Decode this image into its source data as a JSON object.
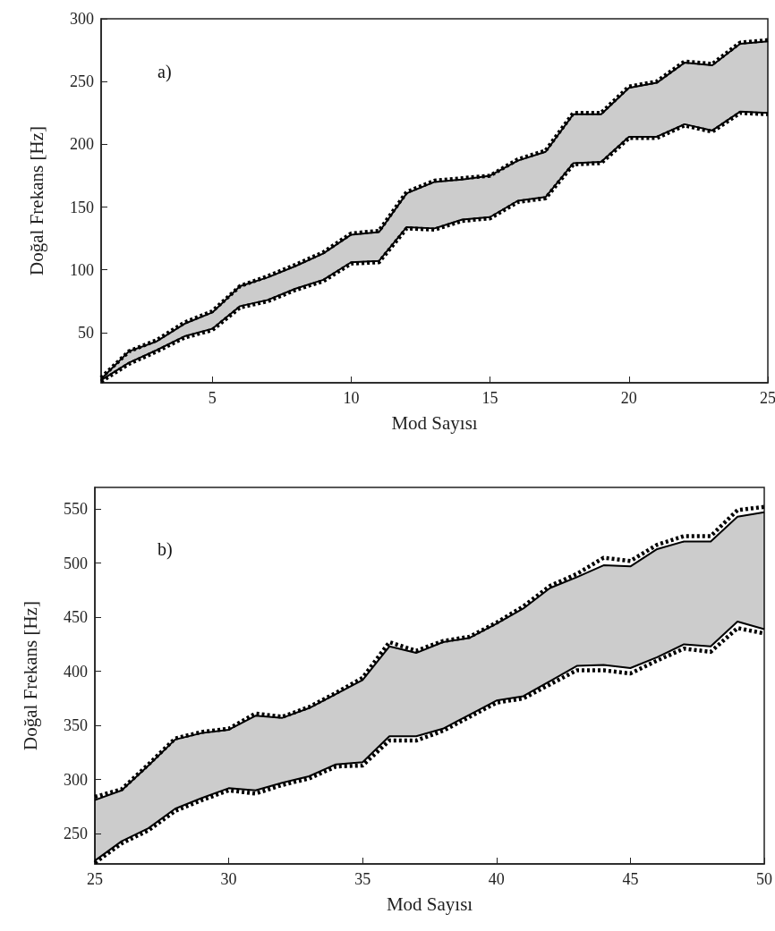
{
  "chart_data": [
    {
      "type": "line",
      "xlabel": "Mod Sayısı",
      "ylabel": "Doğal Frekans [Hz]",
      "annotations": [
        "a)"
      ],
      "x": [
        1,
        2,
        3,
        4,
        5,
        6,
        7,
        8,
        9,
        10,
        11,
        12,
        13,
        14,
        15,
        16,
        17,
        18,
        19,
        20,
        21,
        22,
        23,
        24,
        25
      ],
      "xlim": [
        1,
        25
      ],
      "xticks": [
        5,
        10,
        15,
        20,
        25
      ],
      "ylim": [
        10,
        300
      ],
      "yticks": [
        50,
        100,
        150,
        200,
        250,
        300
      ],
      "grid": false,
      "marker": "none",
      "series": [
        {
          "color": "#000000",
          "line_style": "solid",
          "values": [
            13,
            35,
            43,
            57,
            66,
            87,
            94,
            103,
            113,
            128,
            130,
            161,
            170,
            172,
            175,
            187,
            194,
            224,
            224,
            245,
            249,
            265,
            263,
            280,
            282
          ],
          "lower": [
            12,
            26,
            36,
            47,
            53,
            71,
            76,
            85,
            92,
            106,
            107,
            134,
            133,
            140,
            142,
            155,
            158,
            185,
            186,
            206,
            206,
            216,
            211,
            226,
            225
          ],
          "upper": [
            13,
            35,
            43,
            57,
            66,
            87,
            94,
            103,
            113,
            128,
            130,
            161,
            170,
            172,
            175,
            187,
            194,
            224,
            224,
            245,
            249,
            265,
            263,
            280,
            282
          ]
        },
        {
          "color": "#000000",
          "line_style": "solid",
          "values": [
            12,
            26,
            36,
            47,
            53,
            71,
            76,
            85,
            92,
            106,
            107,
            134,
            133,
            140,
            142,
            155,
            158,
            185,
            186,
            206,
            206,
            216,
            211,
            226,
            225
          ]
        },
        {
          "color": "#000000",
          "line_style": "dotted",
          "values": [
            14,
            35,
            44,
            58,
            67,
            87,
            95,
            104,
            114,
            129,
            131,
            162,
            171,
            173,
            175,
            188,
            195,
            225,
            225,
            246,
            250,
            266,
            264,
            281,
            283
          ]
        },
        {
          "color": "#000000",
          "line_style": "dotted",
          "values": [
            11,
            25,
            35,
            46,
            52,
            70,
            75,
            84,
            91,
            105,
            106,
            133,
            132,
            139,
            141,
            154,
            157,
            184,
            185,
            205,
            205,
            215,
            210,
            225,
            224
          ]
        }
      ]
    },
    {
      "type": "line",
      "xlabel": "Mod Sayısı",
      "ylabel": "Doğal Frekans [Hz]",
      "annotations": [
        "b)"
      ],
      "x": [
        25,
        26,
        27,
        28,
        29,
        30,
        31,
        32,
        33,
        34,
        35,
        36,
        37,
        38,
        39,
        40,
        41,
        42,
        43,
        44,
        45,
        46,
        47,
        48,
        49,
        50
      ],
      "xlim": [
        25,
        50
      ],
      "xticks": [
        25,
        30,
        35,
        40,
        45,
        50
      ],
      "ylim": [
        222,
        570
      ],
      "yticks": [
        250,
        300,
        350,
        400,
        450,
        500,
        550
      ],
      "grid": false,
      "marker": "none",
      "series": [
        {
          "color": "#000000",
          "line_style": "solid",
          "values": [
            281,
            290,
            313,
            337,
            343,
            346,
            359,
            357,
            366,
            379,
            392,
            423,
            417,
            427,
            431,
            444,
            458,
            477,
            487,
            498,
            497,
            513,
            520,
            520,
            543,
            547
          ],
          "lower": [
            225,
            243,
            255,
            273,
            283,
            292,
            290,
            297,
            303,
            314,
            316,
            340,
            340,
            347,
            360,
            373,
            377,
            391,
            405,
            406,
            403,
            413,
            425,
            423,
            446,
            439
          ],
          "upper": [
            281,
            290,
            313,
            337,
            343,
            346,
            359,
            357,
            366,
            379,
            392,
            423,
            417,
            427,
            431,
            444,
            458,
            477,
            487,
            498,
            497,
            513,
            520,
            520,
            543,
            547
          ]
        },
        {
          "color": "#000000",
          "line_style": "solid",
          "values": [
            225,
            243,
            255,
            273,
            283,
            292,
            290,
            297,
            303,
            314,
            316,
            340,
            340,
            347,
            360,
            373,
            377,
            391,
            405,
            406,
            403,
            413,
            425,
            423,
            446,
            439
          ]
        },
        {
          "color": "#000000",
          "line_style": "dotted",
          "values": [
            284,
            291,
            314,
            338,
            344,
            347,
            361,
            358,
            367,
            380,
            394,
            427,
            419,
            428,
            432,
            445,
            460,
            479,
            490,
            505,
            502,
            517,
            525,
            525,
            549,
            552
          ]
        },
        {
          "color": "#000000",
          "line_style": "dotted",
          "values": [
            223,
            241,
            253,
            271,
            281,
            290,
            287,
            295,
            301,
            312,
            313,
            336,
            336,
            345,
            358,
            371,
            375,
            388,
            401,
            401,
            398,
            410,
            421,
            418,
            440,
            435
          ]
        }
      ]
    }
  ]
}
